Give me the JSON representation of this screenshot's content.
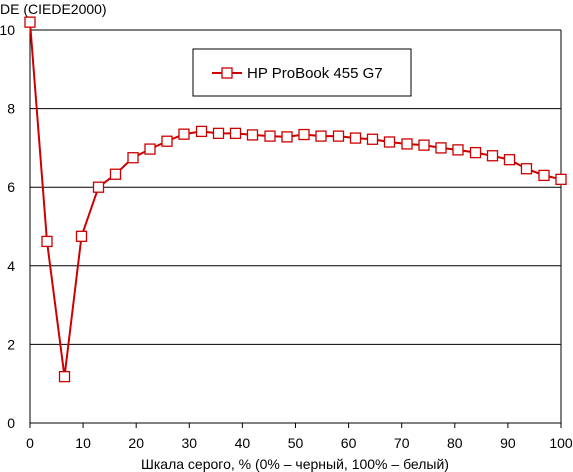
{
  "chart_data": {
    "type": "line",
    "title": "",
    "ylabel": "DE (CIEDE2000)",
    "xlabel": "Шкала серого, % (0% – черный, 100% – белый)",
    "xlim": [
      0,
      100
    ],
    "ylim": [
      0,
      10
    ],
    "x_ticks": [
      0,
      10,
      20,
      30,
      40,
      50,
      60,
      70,
      80,
      90,
      100
    ],
    "y_ticks": [
      0,
      2,
      4,
      6,
      8,
      10
    ],
    "grid": "horizontal",
    "legend_position": "top-right",
    "series": [
      {
        "name": "HP ProBook 455 G7",
        "color": "#cc0000",
        "marker": "square-open",
        "x": [
          0,
          3.2,
          6.5,
          9.7,
          12.9,
          16.1,
          19.4,
          22.6,
          25.8,
          29.0,
          32.3,
          35.5,
          38.7,
          41.9,
          45.2,
          48.4,
          51.6,
          54.8,
          58.1,
          61.3,
          64.5,
          67.7,
          71.0,
          74.2,
          77.4,
          80.6,
          83.9,
          87.1,
          90.3,
          93.5,
          96.8,
          100
        ],
        "y": [
          10.2,
          4.62,
          1.18,
          4.75,
          6.0,
          6.33,
          6.75,
          6.97,
          7.17,
          7.35,
          7.42,
          7.37,
          7.37,
          7.33,
          7.3,
          7.28,
          7.34,
          7.3,
          7.3,
          7.25,
          7.22,
          7.15,
          7.1,
          7.07,
          7.0,
          6.95,
          6.88,
          6.8,
          6.7,
          6.47,
          6.3,
          6.2
        ]
      }
    ]
  }
}
